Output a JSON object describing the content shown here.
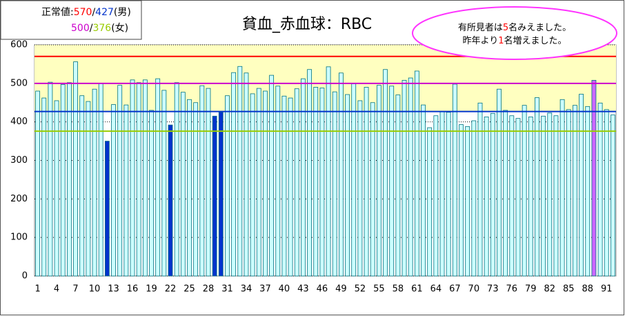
{
  "chart_data": {
    "type": "bar",
    "title": "貧血_赤血球：RBC",
    "categories": [
      "1",
      null,
      null,
      "4",
      null,
      null,
      "7",
      null,
      null,
      "10",
      null,
      null,
      "13",
      null,
      null,
      "16",
      null,
      null,
      "19",
      null,
      null,
      "22",
      null,
      null,
      "25",
      null,
      null,
      "28",
      null,
      null,
      "31",
      null,
      null,
      "34",
      null,
      null,
      "37",
      null,
      null,
      "40",
      null,
      null,
      "43",
      null,
      null,
      "46",
      null,
      null,
      "49",
      null,
      null,
      "52",
      null,
      null,
      "55",
      null,
      null,
      "58",
      null,
      null,
      "61",
      null,
      null,
      "64",
      null,
      null,
      "67",
      null,
      null,
      "70",
      null,
      null,
      "73",
      null,
      null,
      "76",
      null,
      null,
      "79",
      null,
      null,
      "82",
      null,
      null,
      "85",
      null,
      null,
      "88",
      null,
      null,
      "91",
      null
    ],
    "values": [
      480,
      462,
      503,
      455,
      497,
      502,
      556,
      468,
      453,
      485,
      500,
      350,
      445,
      495,
      444,
      509,
      502,
      509,
      430,
      512,
      482,
      392,
      502,
      477,
      458,
      450,
      494,
      487,
      415,
      425,
      468,
      528,
      544,
      527,
      473,
      487,
      480,
      521,
      493,
      467,
      462,
      486,
      512,
      536,
      490,
      488,
      543,
      478,
      527,
      471,
      499,
      455,
      490,
      450,
      495,
      536,
      493,
      470,
      508,
      514,
      532,
      444,
      385,
      416,
      427,
      425,
      498,
      393,
      388,
      403,
      449,
      413,
      422,
      485,
      430,
      416,
      409,
      443,
      413,
      463,
      415,
      423,
      416,
      458,
      432,
      443,
      472,
      440,
      508,
      449,
      432,
      418
    ],
    "color": "#ccffff",
    "bar_colors": [
      "#ccffff",
      "#ccffff",
      "#ccffff",
      "#ccffff",
      "#ccffff",
      "#ccffff",
      "#ccffff",
      "#ccffff",
      "#ccffff",
      "#ccffff",
      "#ccffff",
      "#0033cc",
      "#ccffff",
      "#ccffff",
      "#ccffff",
      "#ccffff",
      "#ccffff",
      "#ccffff",
      "#ccffff",
      "#ccffff",
      "#ccffff",
      "#0033cc",
      "#ccffff",
      "#ccffff",
      "#ccffff",
      "#ccffff",
      "#ccffff",
      "#ccffff",
      "#0033cc",
      "#0033cc",
      "#ccffff",
      "#ccffff",
      "#ccffff",
      "#ccffff",
      "#ccffff",
      "#ccffff",
      "#ccffff",
      "#ccffff",
      "#ccffff",
      "#ccffff",
      "#ccffff",
      "#ccffff",
      "#ccffff",
      "#ccffff",
      "#ccffff",
      "#ccffff",
      "#ccffff",
      "#ccffff",
      "#ccffff",
      "#ccffff",
      "#ccffff",
      "#ccffff",
      "#ccffff",
      "#ccffff",
      "#ccffff",
      "#ccffff",
      "#ccffff",
      "#ccffff",
      "#ccffff",
      "#ccffff",
      "#ccffff",
      "#ccffff",
      "#ccffff",
      "#ccffff",
      "#ccffff",
      "#ccffff",
      "#ccffff",
      "#ccffff",
      "#ccffff",
      "#ccffff",
      "#ccffff",
      "#ccffff",
      "#ccffff",
      "#ccffff",
      "#ccffff",
      "#ccffff",
      "#ccffff",
      "#ccffff",
      "#ccffff",
      "#ccffff",
      "#ccffff",
      "#ccffff",
      "#ccffff",
      "#ccffff",
      "#ccffff",
      "#ccffff",
      "#ccffff",
      "#ccffff",
      "#cc66ff",
      "#ccffff",
      "#ccffff",
      "#ccffff"
    ],
    "ylim": [
      0,
      600
    ],
    "yticks": [
      0,
      100,
      200,
      300,
      400,
      500,
      600
    ],
    "grid": true,
    "band_color": "#ffffc0",
    "reference_lines": [
      {
        "value": 570,
        "color": "#ff0000"
      },
      {
        "value": 427,
        "color": "#0033cc"
      },
      {
        "value": 500,
        "color": "#cc00cc"
      },
      {
        "value": 376,
        "color": "#99cc00"
      }
    ],
    "legend": {
      "label": "正常値:",
      "separator": "/",
      "male": "(男)",
      "female": "(女)"
    },
    "annotation": {
      "lines": [
        [
          "有所見者は",
          "5",
          "名みえました。"
        ],
        [
          "昨年より",
          "1",
          "名増えました。"
        ]
      ]
    }
  }
}
